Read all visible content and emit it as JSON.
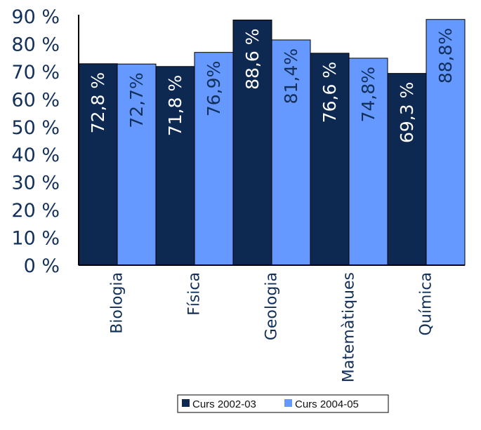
{
  "chart_data": {
    "type": "bar",
    "categories": [
      "Biologia",
      "Física",
      "Geologia",
      "Matemàtiques",
      "Química"
    ],
    "series": [
      {
        "name": "Curs 2002-03",
        "values": [
          72.8,
          71.8,
          88.6,
          76.6,
          69.3
        ],
        "labels": [
          "72,8 %",
          "71,8 %",
          "88,6 %",
          "76,6 %",
          "69,3 %"
        ],
        "color": "#0d2851",
        "label_color": "#ffffff"
      },
      {
        "name": "Curs 2004-05",
        "values": [
          72.7,
          76.9,
          81.4,
          74.8,
          88.8
        ],
        "labels": [
          "72,7%",
          "76,9%",
          "81,4%",
          "74,8%",
          "88,8%"
        ],
        "color": "#6699ff",
        "label_color": "#12305a"
      }
    ],
    "y_ticks": [
      "0 %",
      "10 %",
      "20 %",
      "30 %",
      "40 %",
      "50 %",
      "60 %",
      "70 %",
      "80 %",
      "90 %"
    ],
    "ylim": [
      0,
      90
    ],
    "xlabel": "",
    "ylabel": "",
    "legend_position": "bottom",
    "grid": false
  },
  "colors": {
    "axis": "#000000",
    "text": "#12305a"
  }
}
